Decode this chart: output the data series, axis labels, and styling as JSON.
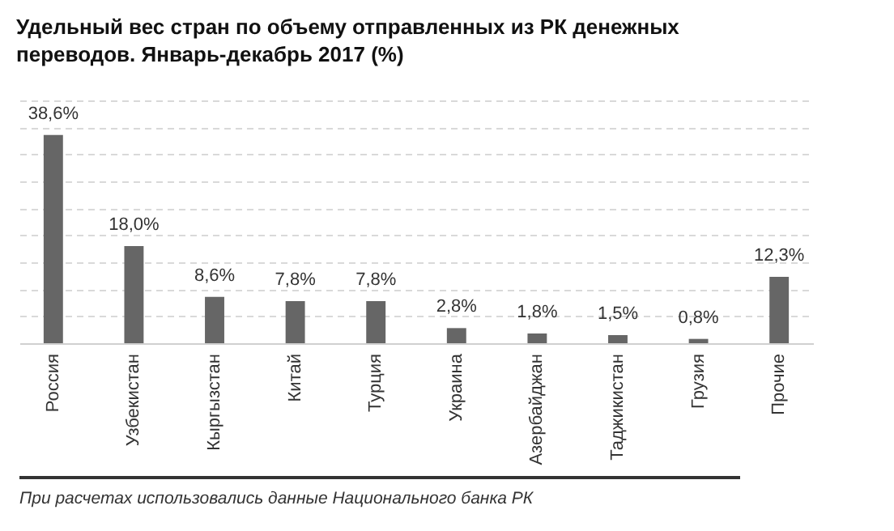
{
  "chart_data": {
    "type": "bar",
    "title": "Удельный вес стран по объему отправленных из РК денежных переводов. Январь-декабрь 2017 (%)",
    "categories": [
      "Россия",
      "Узбекистан",
      "Кыргызстан",
      "Китай",
      "Турция",
      "Украина",
      "Азербайджан",
      "Таджикистан",
      "Грузия",
      "Прочие"
    ],
    "values": [
      38.6,
      18.0,
      8.6,
      7.8,
      7.8,
      2.8,
      1.8,
      1.5,
      0.8,
      12.3
    ],
    "value_labels": [
      "38,6%",
      "18,0%",
      "8,6%",
      "7,8%",
      "7,8%",
      "2,8%",
      "1,8%",
      "1,5%",
      "0,8%",
      "12,3%"
    ],
    "color": "#666666",
    "ylim": [
      0,
      45
    ],
    "yticks": [
      0,
      5,
      10,
      15,
      20,
      25,
      30,
      35,
      40,
      45
    ],
    "grid": "y",
    "tick_labels": "x",
    "annotations": [
      "При расчетах использовались данные Национального банка РК"
    ]
  }
}
